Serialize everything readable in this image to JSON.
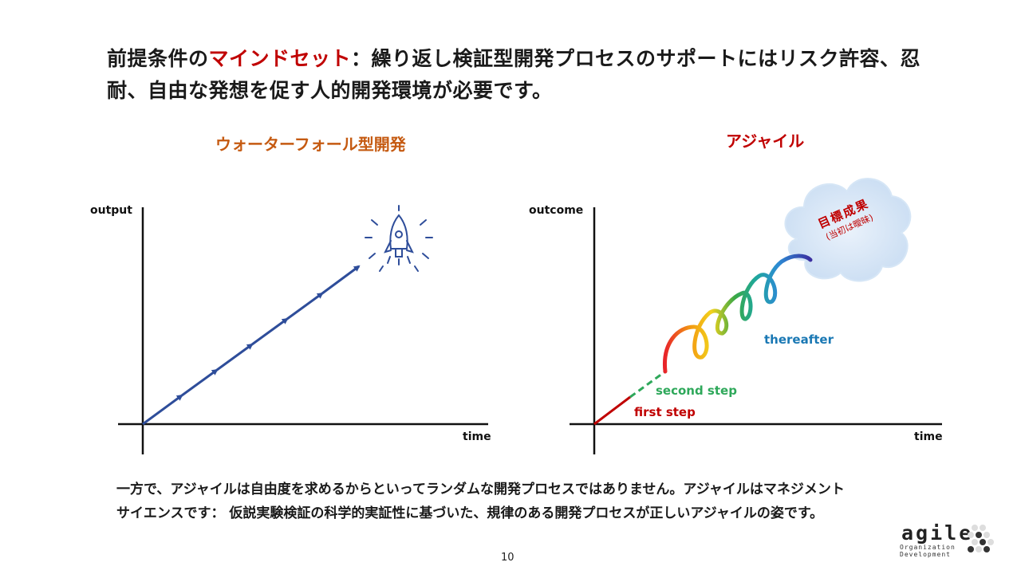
{
  "headline": {
    "prefix": "前提条件の",
    "accent": "マインドセット",
    "rest": "：繰り返し検証型開発プロセスのサポートにはリスク許容、忍耐、自由な発想を促す人的開発環境が必要です。"
  },
  "waterfall": {
    "title": "ウォーターフォール型開発",
    "y_axis": "output",
    "x_axis": "time",
    "rocket_icon": "rocket-icon"
  },
  "agile": {
    "title": "アジャイル",
    "y_axis": "outcome",
    "x_axis": "time",
    "first_step": "first step",
    "second_step": "second step",
    "thereafter": "thereafter",
    "goal_title": "目標成果",
    "goal_sub": "(当初は曖昧)"
  },
  "colors": {
    "accent": "#c00000",
    "waterfall_title": "#c55a11",
    "arrow": "#2e4d9a",
    "first_step": "#c00000",
    "second_step": "#2ea85a",
    "thereafter": "#1a78b4"
  },
  "bottom_text": {
    "line1": "一方で、アジャイルは自由度を求めるからといってランダムな開発プロセスではありません。アジャイルはマネジメント",
    "line2": "サイエンスです： 仮説実験検証の科学的実証性に基づいた、規律のある開発プロセスが正しいアジャイルの姿です。"
  },
  "page_number": "10",
  "logo": {
    "word": "agile",
    "line1": "Organization",
    "line2": "Development"
  }
}
